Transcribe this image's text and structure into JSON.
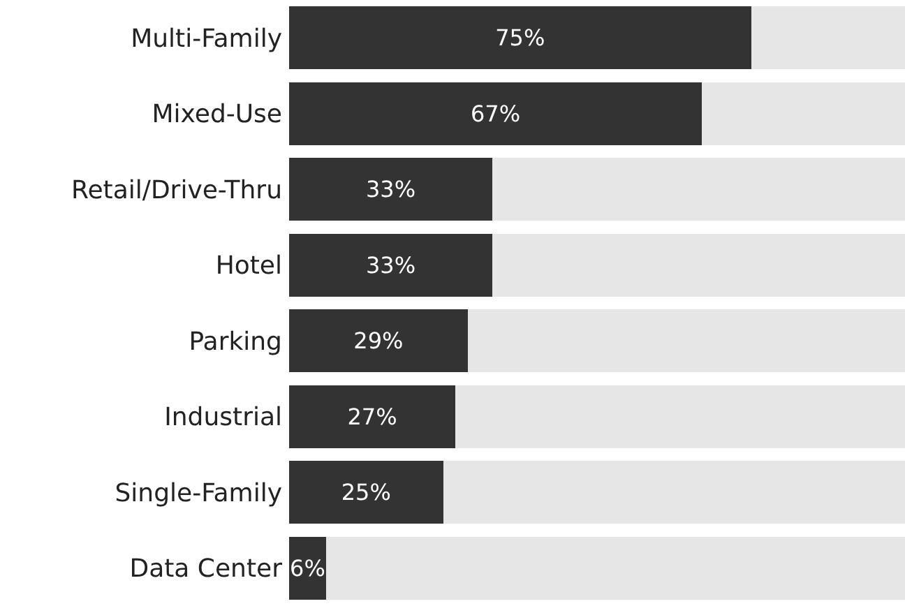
{
  "chart_data": {
    "type": "bar",
    "orientation": "horizontal",
    "stacked": true,
    "categories": [
      "Multi-Family",
      "Mixed-Use",
      "Retail/Drive-Thru",
      "Hotel",
      "Parking",
      "Industrial",
      "Single-Family",
      "Data Center"
    ],
    "series": [
      {
        "color": "#333333",
        "values": [
          75,
          67,
          33,
          33,
          29,
          27,
          25,
          6
        ],
        "value_labels": [
          "75%",
          "67%",
          "33%",
          "33%",
          "29%",
          "27%",
          "25%",
          "6%"
        ]
      },
      {
        "color": "#e6e6e6",
        "values": [
          25,
          33,
          67,
          67,
          71,
          73,
          75,
          94
        ]
      }
    ],
    "xlim": [
      0,
      100
    ],
    "tick_labels": "y",
    "grid": false
  }
}
